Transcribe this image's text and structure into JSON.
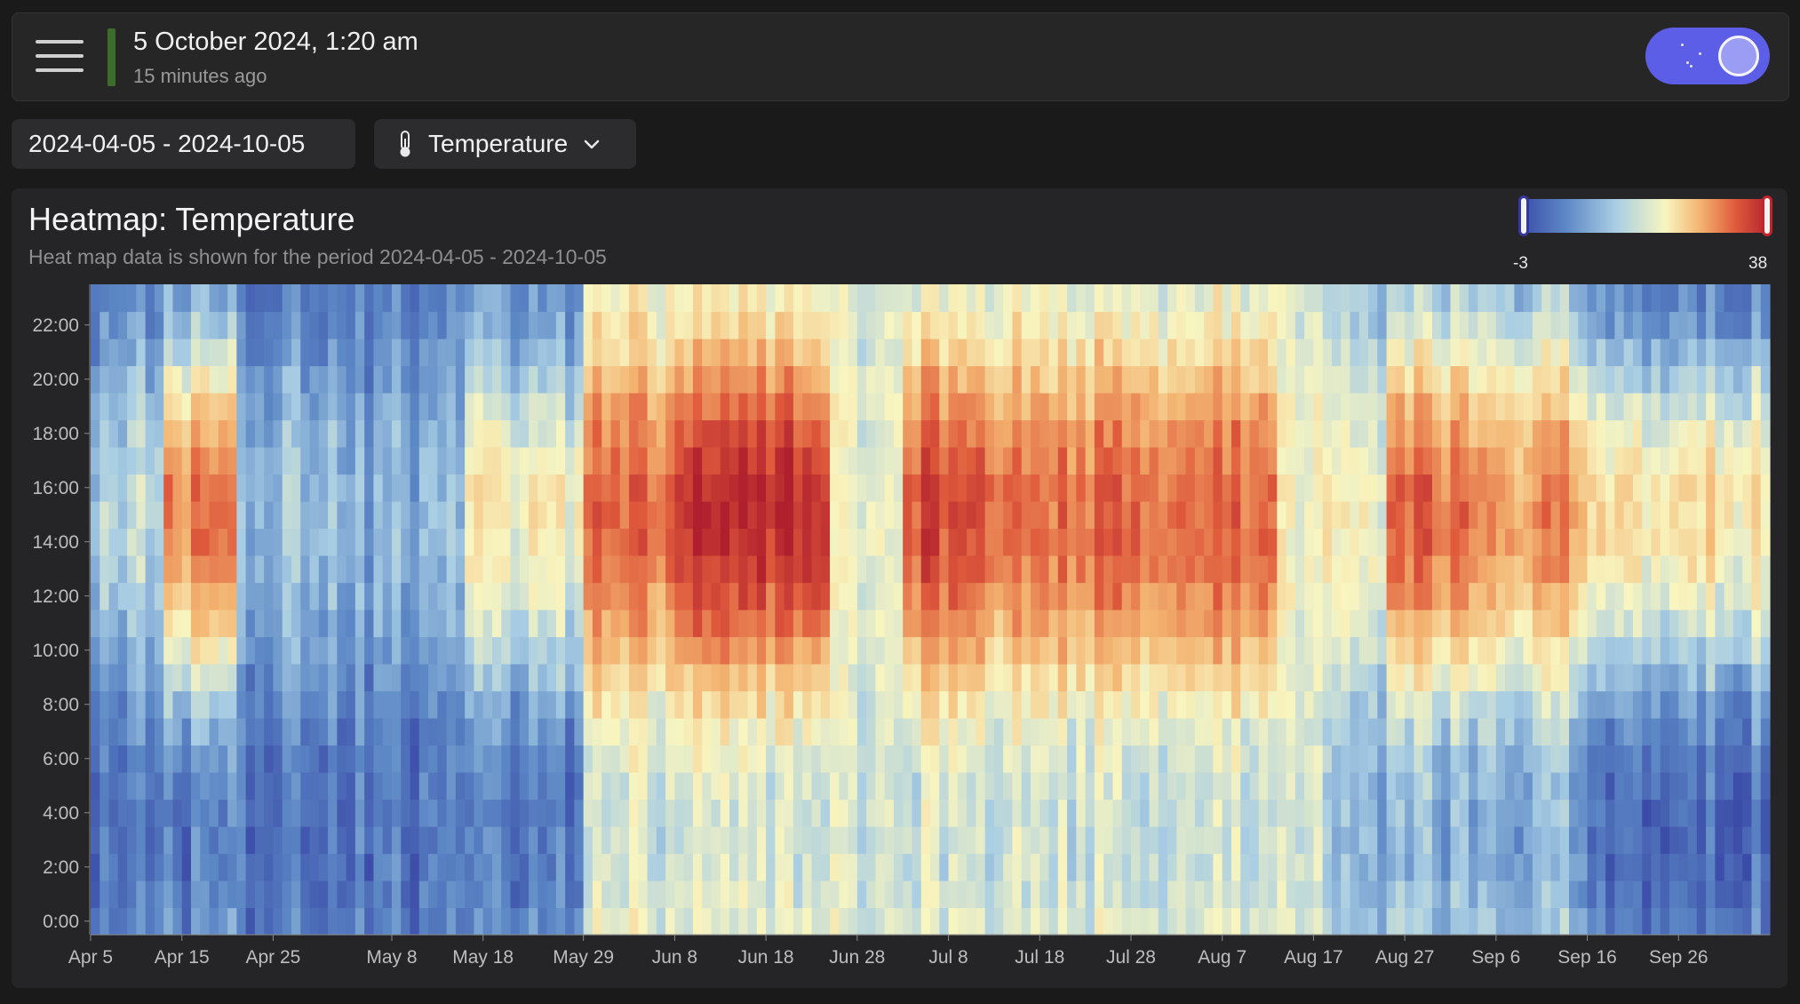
{
  "header": {
    "datetime": "5 October 2024, 1:20 am",
    "updated": "15 minutes ago",
    "status_color": "#3d6d2c",
    "toggle_color": "#5d5ee8"
  },
  "filters": {
    "date_range": "2024-04-05 - 2024-10-05",
    "metric": "Temperature",
    "metric_icon": "thermometer-icon"
  },
  "card": {
    "title": "Heatmap: Temperature",
    "subtitle": "Heat map data is shown for the period 2024-04-05 - 2024-10-05"
  },
  "legend": {
    "min": "-3",
    "max": "38",
    "colors": [
      "#3b4ca8",
      "#5c87c5",
      "#a8cde3",
      "#f8f5c0",
      "#f3b370",
      "#df5a3c",
      "#b01f2d"
    ],
    "missing_color": "#6b6b6d"
  },
  "chart_data": {
    "type": "heatmap",
    "title": "Heatmap: Temperature",
    "x_tick_labels": [
      "Apr 5",
      "Apr 15",
      "Apr 25",
      "May 8",
      "May 18",
      "May 29",
      "Jun 8",
      "Jun 18",
      "Jun 28",
      "Jul 8",
      "Jul 18",
      "Jul 28",
      "Aug 7",
      "Aug 17",
      "Aug 27",
      "Sep 6",
      "Sep 16",
      "Sep 26"
    ],
    "y_tick_labels": [
      "0:00",
      "2:00",
      "4:00",
      "6:00",
      "8:00",
      "10:00",
      "12:00",
      "14:00",
      "16:00",
      "18:00",
      "20:00",
      "22:00"
    ],
    "x_range": [
      "2024-04-05",
      "2024-10-05"
    ],
    "y_range": [
      0,
      23
    ],
    "color_range": [
      -3,
      38
    ],
    "approx_daily_peak_temps": [
      {
        "period": "Apr 5 - Apr 12",
        "peak": 12
      },
      {
        "period": "Apr 13 - Apr 20",
        "peak": 28
      },
      {
        "period": "Apr 21 - May 2",
        "peak": 10
      },
      {
        "period": "May 3 - May 15",
        "peak": 8
      },
      {
        "period": "May 16 - May 28",
        "peak": 18
      },
      {
        "period": "May 29 - Jun 7",
        "peak": 30
      },
      {
        "period": "Jun 8 - Jun 24",
        "peak": 36
      },
      {
        "period": "Jun 25 - Jul 2",
        "peak": 16
      },
      {
        "period": "Jul 3 - Jul 12",
        "peak": 33
      },
      {
        "period": "Jul 13 - Jul 24",
        "peak": 30
      },
      {
        "period": "Jul 25 - Aug 12",
        "peak": 31
      },
      {
        "period": "Aug 13 - Aug 24",
        "peak": 17
      },
      {
        "period": "Aug 25 - Sep 3",
        "peak": 30
      },
      {
        "period": "Sep 4 - Sep 15",
        "peak": 27
      },
      {
        "period": "Sep 16 - Oct 5",
        "peak": 20
      }
    ],
    "approx_night_min_temps": [
      {
        "period": "Apr 5 - May 28",
        "min": 2
      },
      {
        "period": "May 29 - Aug 17",
        "min": 14
      },
      {
        "period": "Aug 18 - Sep 15",
        "min": 8
      },
      {
        "period": "Sep 16 - Oct 5",
        "min": 1
      }
    ]
  }
}
